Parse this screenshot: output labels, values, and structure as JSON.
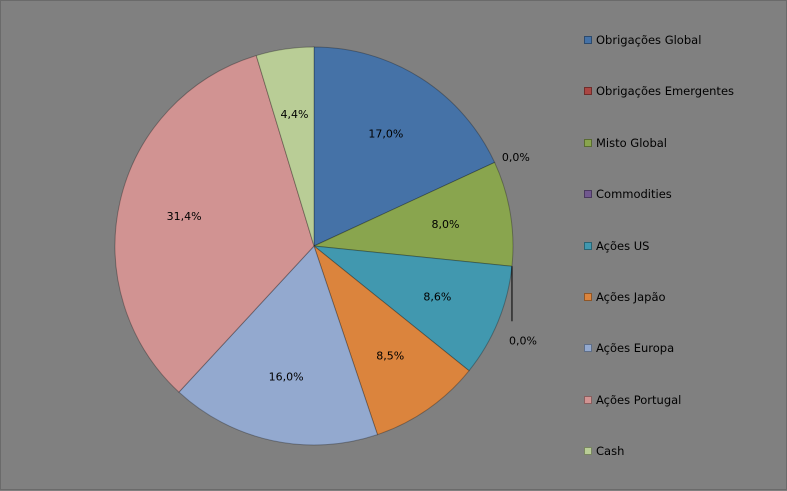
{
  "chart_data": {
    "type": "pie",
    "title": "",
    "legend_position": "right",
    "series": [
      {
        "name": "Obrigações Global",
        "value": 17.0,
        "label": "17,0%",
        "color": "#4572A7"
      },
      {
        "name": "Obrigações Emergentes",
        "value": 0.0,
        "label": "0,0%",
        "color": "#AA4643"
      },
      {
        "name": "Misto Global",
        "value": 8.0,
        "label": "8,0%",
        "color": "#89A54E"
      },
      {
        "name": "Commodities",
        "value": 0.0,
        "label": "0,0%",
        "color": "#71588F"
      },
      {
        "name": "Ações US",
        "value": 8.6,
        "label": "8,6%",
        "color": "#4198AF"
      },
      {
        "name": "Ações Japão",
        "value": 8.5,
        "label": "8,5%",
        "color": "#DB843D"
      },
      {
        "name": "Ações Europa",
        "value": 16.0,
        "label": "16,0%",
        "color": "#93A9CF"
      },
      {
        "name": "Ações Portugal",
        "value": 31.4,
        "label": "31,4%",
        "color": "#D19392"
      },
      {
        "name": "Cash",
        "value": 4.4,
        "label": "4,4%",
        "color": "#B9CD96"
      }
    ]
  }
}
